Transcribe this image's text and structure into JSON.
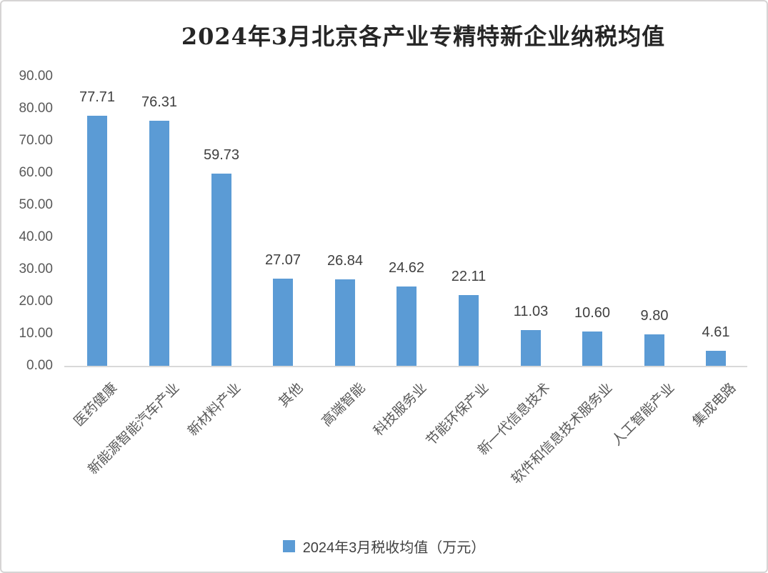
{
  "chart_data": {
    "type": "bar",
    "title": "2024年3月北京各产业专精特新企业纳税均值",
    "legend": "2024年3月税收均值（万元）",
    "legend_position": "bottom",
    "categories": [
      "医药健康",
      "新能源智能汽车产业",
      "新材料产业",
      "其他",
      "高端智能",
      "科技服务业",
      "节能环保产业",
      "新一代信息技术",
      "软件和信息技术服务业",
      "人工智能产业",
      "集成电路"
    ],
    "values": [
      77.71,
      76.31,
      59.73,
      27.07,
      26.84,
      24.62,
      22.11,
      11.03,
      10.6,
      9.8,
      4.61
    ],
    "value_labels": [
      "77.71",
      "76.31",
      "59.73",
      "27.07",
      "26.84",
      "24.62",
      "22.11",
      "11.03",
      "10.60",
      "9.80",
      "4.61"
    ],
    "ylim": [
      0,
      90
    ],
    "ytick_step": 10,
    "ytick_labels": [
      "0.00",
      "10.00",
      "20.00",
      "30.00",
      "40.00",
      "50.00",
      "60.00",
      "70.00",
      "80.00",
      "90.00"
    ],
    "grid": false,
    "bar_color": "#5b9bd5",
    "axis_line_color": "#d9d9d9",
    "value_label_color": "#404040",
    "tick_label_color": "#595959",
    "title_color": "#262626"
  }
}
